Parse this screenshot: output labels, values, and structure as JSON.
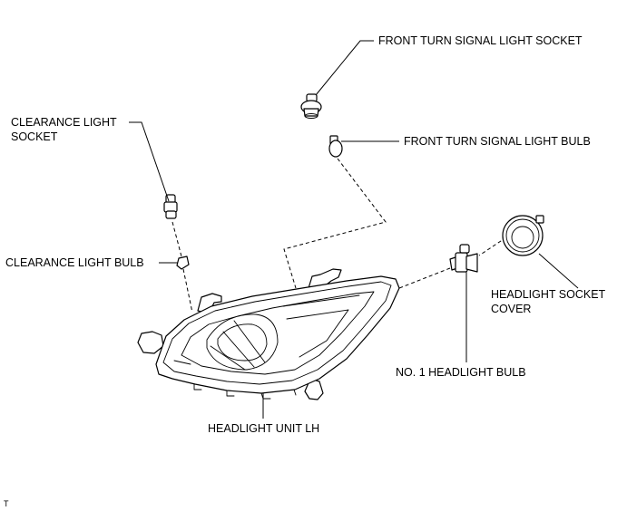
{
  "labels": {
    "front_turn_signal_light_socket": "FRONT TURN SIGNAL LIGHT SOCKET",
    "front_turn_signal_light_bulb": "FRONT TURN SIGNAL LIGHT BULB",
    "clearance_light_socket_line1": "CLEARANCE LIGHT",
    "clearance_light_socket_line2": "SOCKET",
    "clearance_light_bulb": "CLEARANCE LIGHT BULB",
    "headlight_socket_cover_line1": "HEADLIGHT SOCKET",
    "headlight_socket_cover_line2": "COVER",
    "no1_headlight_bulb": "NO. 1 HEADLIGHT BULB",
    "headlight_unit_lh": "HEADLIGHT UNIT LH"
  },
  "corner_mark": "T"
}
